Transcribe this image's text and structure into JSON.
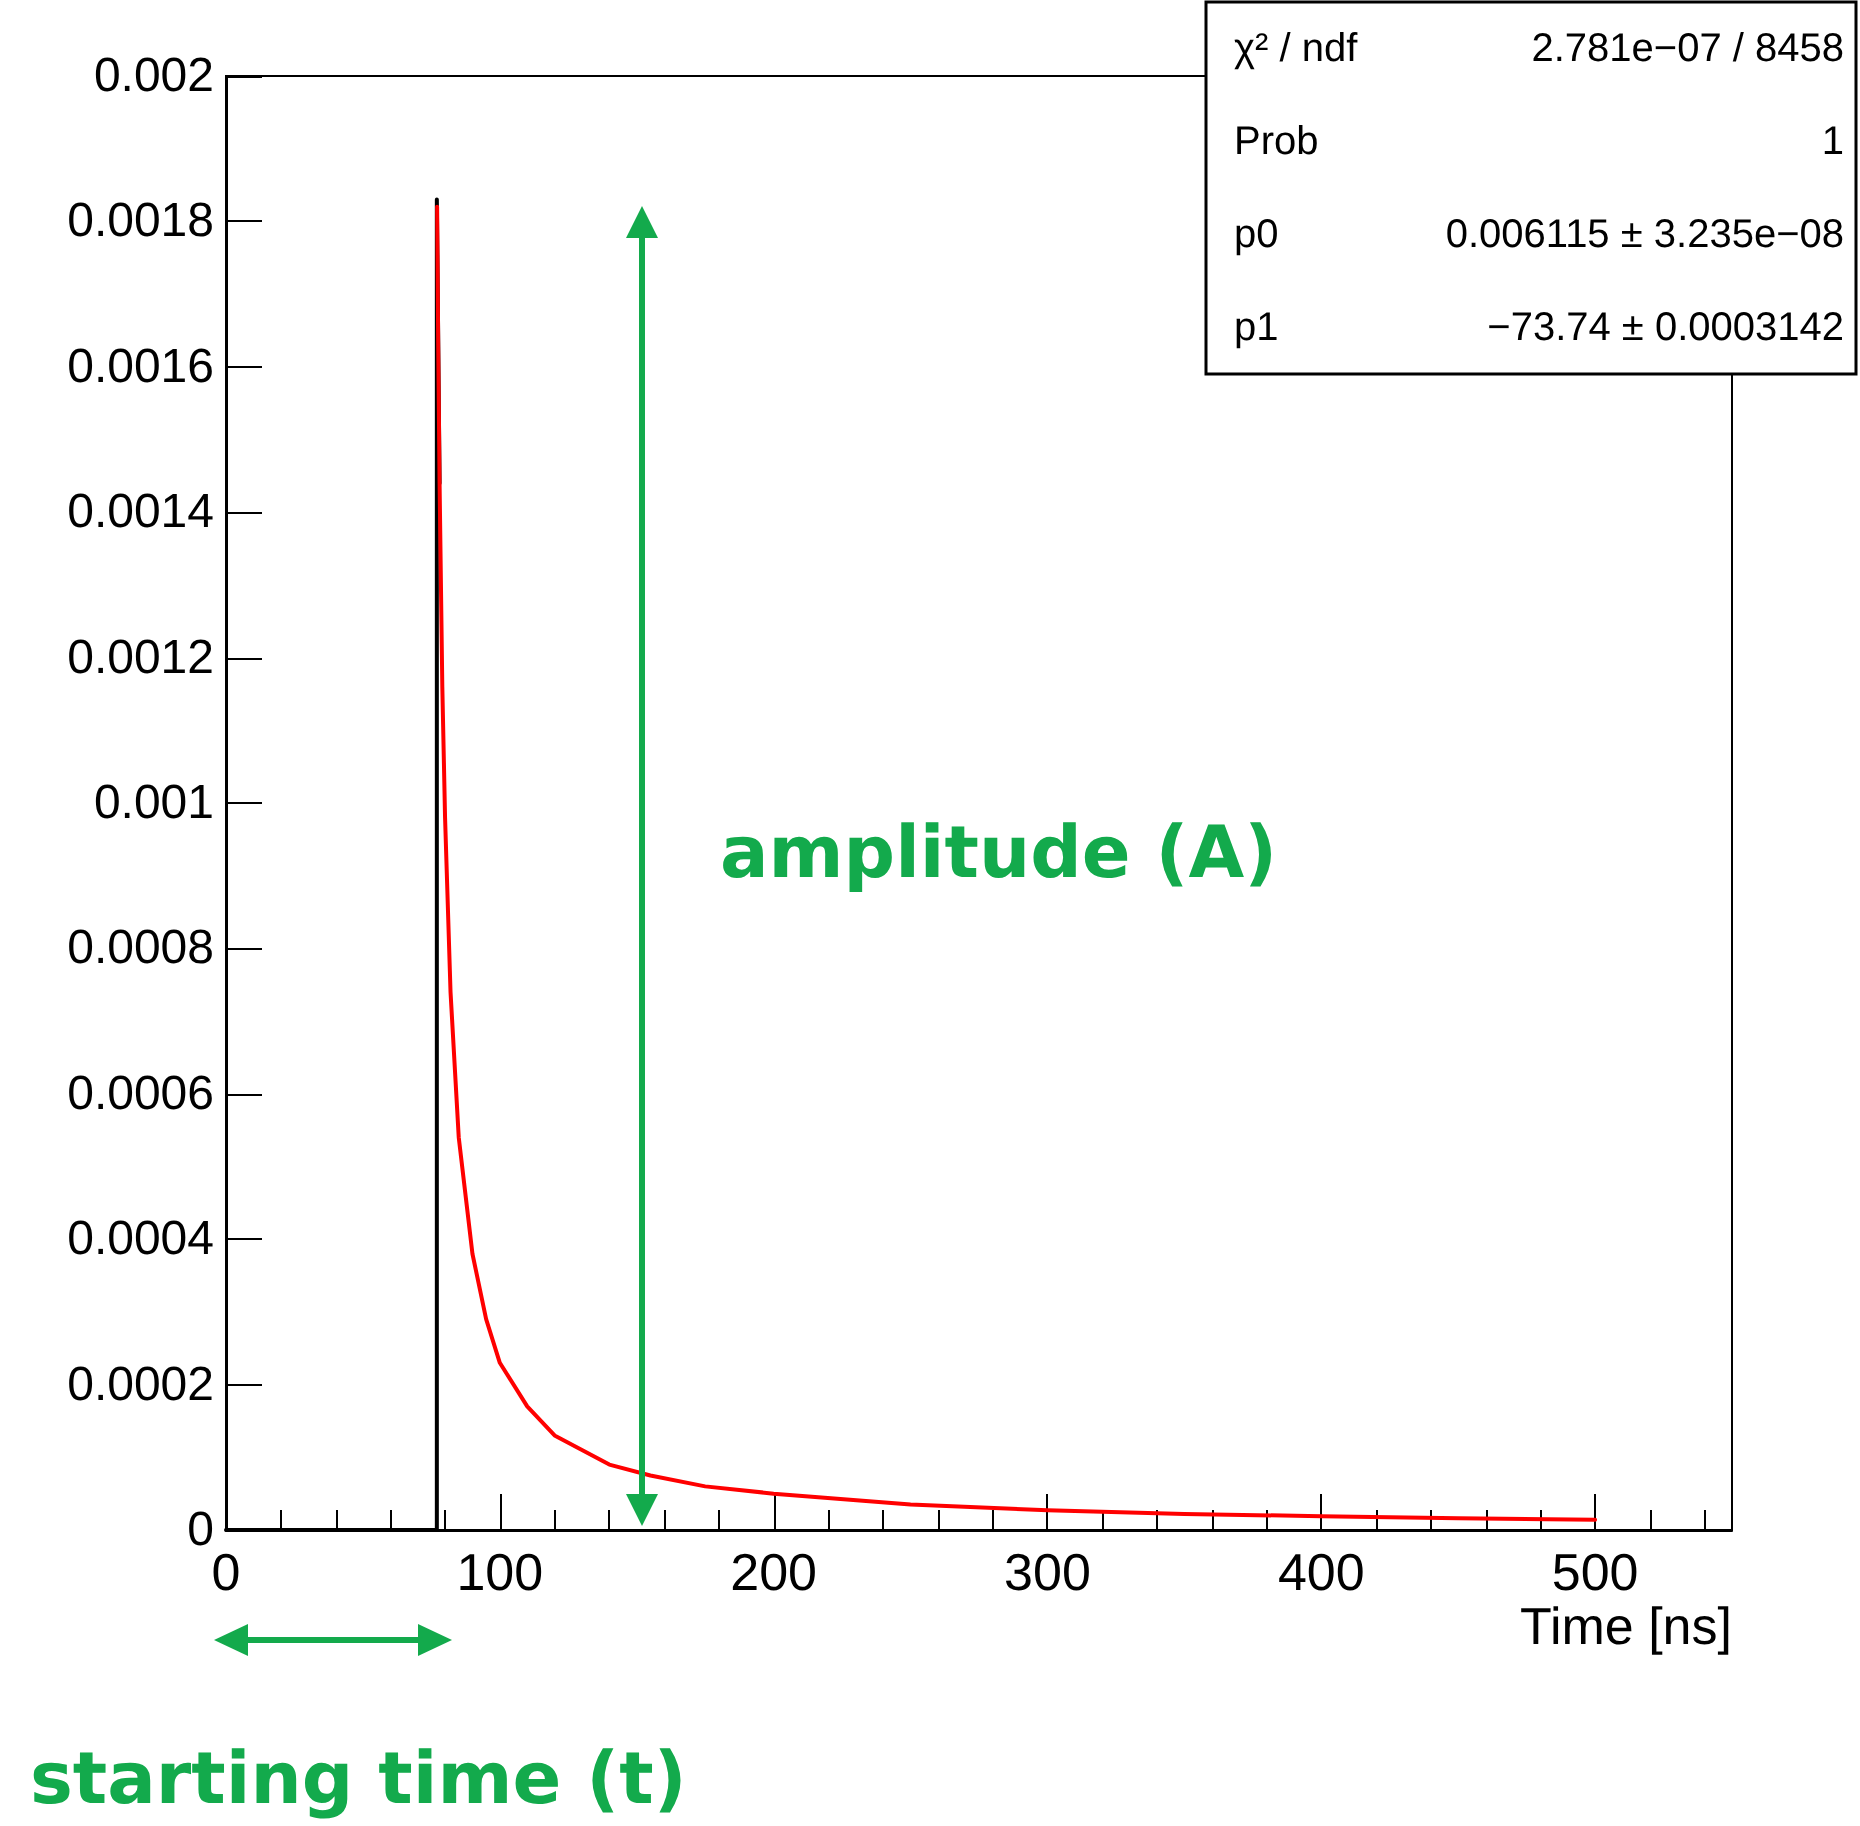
{
  "chart_data": {
    "type": "line",
    "xlabel": "Time [ns]",
    "series": [
      {
        "color": "#000000",
        "x": [
          0,
          77,
          77,
          78
        ],
        "values": [
          0,
          0,
          0.00183,
          0.00144
        ]
      },
      {
        "color": "#ff0000",
        "x": [
          77.1,
          77.5,
          78,
          79,
          80,
          82,
          85,
          90,
          95,
          100,
          110,
          120,
          130,
          140,
          155,
          175,
          200,
          250,
          300,
          350,
          400,
          450,
          500
        ],
        "values": [
          0.00182,
          0.00163,
          0.00144,
          0.00116,
          0.00098,
          0.00074,
          0.00054,
          0.00038,
          0.00029,
          0.00023,
          0.00017,
          0.00013,
          0.00011,
          9e-05,
          7.5e-05,
          6e-05,
          5e-05,
          3.5e-05,
          2.7e-05,
          2.2e-05,
          1.9e-05,
          1.6e-05,
          1.4e-05
        ]
      }
    ],
    "xlim": [
      0,
      550
    ],
    "xticks": [
      0,
      {
        "value": 20,
        "label": null
      },
      {
        "value": 40,
        "label": null
      },
      {
        "value": 60,
        "label": null
      },
      {
        "value": 80,
        "label": null
      },
      100,
      {
        "value": 120,
        "label": null
      },
      {
        "value": 140,
        "label": null
      },
      {
        "value": 160,
        "label": null
      },
      {
        "value": 180,
        "label": null
      },
      200,
      {
        "value": 220,
        "label": null
      },
      {
        "value": 240,
        "label": null
      },
      {
        "value": 260,
        "label": null
      },
      {
        "value": 280,
        "label": null
      },
      300,
      {
        "value": 320,
        "label": null
      },
      {
        "value": 340,
        "label": null
      },
      {
        "value": 360,
        "label": null
      },
      {
        "value": 380,
        "label": null
      },
      400,
      {
        "value": 420,
        "label": null
      },
      {
        "value": 440,
        "label": null
      },
      {
        "value": 460,
        "label": null
      },
      {
        "value": 480,
        "label": null
      },
      500,
      {
        "value": 520,
        "label": null
      },
      {
        "value": 540,
        "label": null
      }
    ],
    "ylim": [
      0,
      0.002
    ],
    "yticks": [
      0,
      0.0002,
      0.0004,
      0.0006,
      0.0008,
      0.001,
      0.0012,
      0.0014,
      0.0016,
      0.0018,
      0.002
    ],
    "grid": false,
    "marker": "none",
    "line_style": "solid",
    "annotations": [
      "χ² / ndf",
      "2.781e−07 / 8458",
      "Prob",
      "1",
      "p0",
      "0.006115 ± 3.235e−08",
      "p1",
      "−73.74 ± 0.0003142",
      "amplitude (A)",
      "starting time (t)"
    ]
  }
}
